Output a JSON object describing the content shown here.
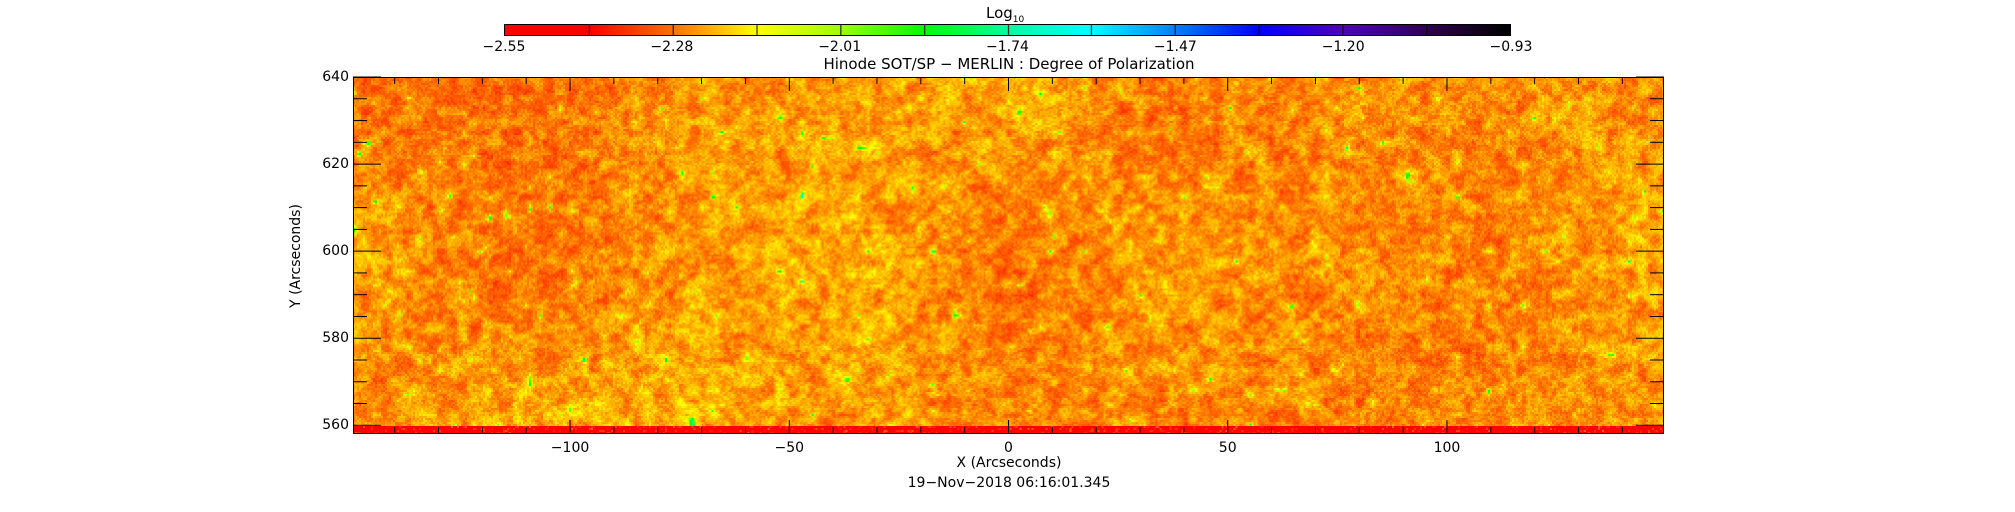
{
  "chart_data": {
    "type": "heatmap",
    "title": "Hinode SOT/SP − MERLIN : Degree of Polarization",
    "xlabel": "X (Arcseconds)",
    "ylabel": "Y (Arcseconds)",
    "xlim": [
      -149.5,
      149.5
    ],
    "ylim": [
      558,
      640
    ],
    "xticks": [
      -100,
      -50,
      0,
      50,
      100
    ],
    "xtick_labels": [
      "−100",
      "−50",
      "0",
      "50",
      "100"
    ],
    "yticks": [
      560,
      580,
      600,
      620,
      640
    ],
    "ytick_labels": [
      "560",
      "580",
      "600",
      "620",
      "640"
    ],
    "colorbar": {
      "label": "Log",
      "label_sub": "10",
      "range": [
        -2.55,
        -0.93
      ],
      "ticks": [
        -2.55,
        -2.28,
        -2.01,
        -1.74,
        -1.47,
        -1.2,
        -0.93
      ],
      "tick_labels": [
        "−2.55",
        "−2.28",
        "−2.01",
        "−1.74",
        "−1.47",
        "−1.20",
        "−0.93"
      ],
      "colormap": [
        "#ff0000",
        "#ff0000",
        "#ff7000",
        "#ffff00",
        "#a0ff00",
        "#00ff00",
        "#00ffa0",
        "#00ffff",
        "#0080ff",
        "#0000ff",
        "#5000c0",
        "#300050",
        "#000000"
      ]
    },
    "typical_value_range": [
      -2.45,
      -2.15
    ],
    "timestamp": "19−Nov−2018 06:16:01.345"
  }
}
